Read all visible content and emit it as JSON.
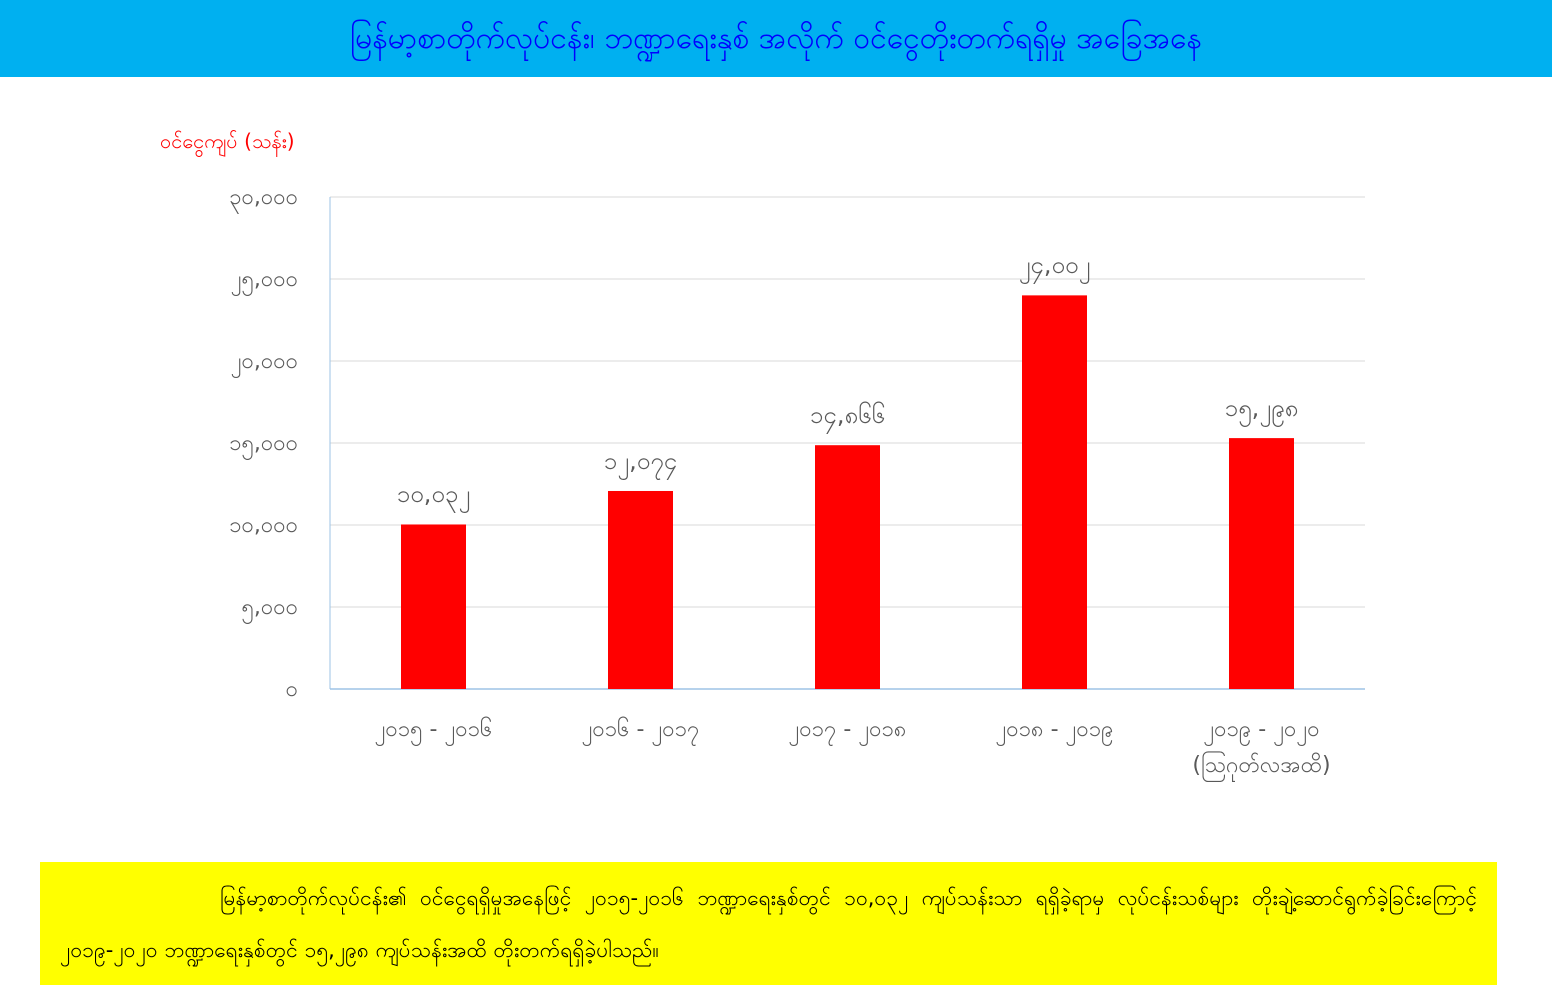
{
  "chart_data": {
    "type": "bar",
    "title": "မြန်မာ့စာတိုက်လုပ်ငန်း၊ ဘဏ္ဍာရေးနှစ် အလိုက် ဝင်ငွေတိုးတက်ရရှိမှု အခြေအနေ",
    "y_label": "ဝင်ငွေကျပ် (သန်း)",
    "categories": [
      "၂၀၁၅ - ၂၀၁၆",
      "၂၀၁၆ - ၂၀၁၇",
      "၂၀၁၇ - ၂၀၁၈",
      "၂၀၁၈ - ၂၀၁၉",
      "၂၀၁၉ - ၂၀၂၀\n(ဩဂုတ်လအထိ)"
    ],
    "values": [
      10032,
      12074,
      14866,
      24002,
      15298
    ],
    "value_labels": [
      "၁၀,၀၃၂",
      "၁၂,၀၇၄",
      "၁၄,၈၆၆",
      "၂၄,၀၀၂",
      "၁၅,၂၉၈"
    ],
    "color": "#ff0000",
    "ylim": [
      0,
      30000
    ],
    "yticks": [
      {
        "value": 0,
        "label": "၀"
      },
      {
        "value": 5000,
        "label": "၅,၀၀၀"
      },
      {
        "value": 10000,
        "label": "၁၀,၀၀၀"
      },
      {
        "value": 15000,
        "label": "၁၅,၀၀၀"
      },
      {
        "value": 20000,
        "label": "၂၀,၀၀၀"
      },
      {
        "value": 25000,
        "label": "၂၅,၀၀၀"
      },
      {
        "value": 30000,
        "label": "၃၀,၀၀၀"
      }
    ],
    "grid": true,
    "note": "မြန်မာ့စာတိုက်လုပ်ငန်း၏ ဝင်ငွေရရှိမှုအနေဖြင့် ၂၀၁၅-၂၀၁၆ ဘဏ္ဍာရေးနှစ်တွင် ၁၀,၀၃၂ ကျပ်သန်းသာ ရရှိခဲ့ရာမှ လုပ်ငန်းသစ်များ တိုးချဲ့ဆောင်ရွက်ခဲ့ခြင်းကြောင့် ၂၀၁၉-၂၀၂၀ ဘဏ္ဍာရေးနှစ်တွင် ၁၅,၂၉၈ ကျပ်သန်းအထိ တိုးတက်ရရှိခဲ့ပါသည်။"
  }
}
